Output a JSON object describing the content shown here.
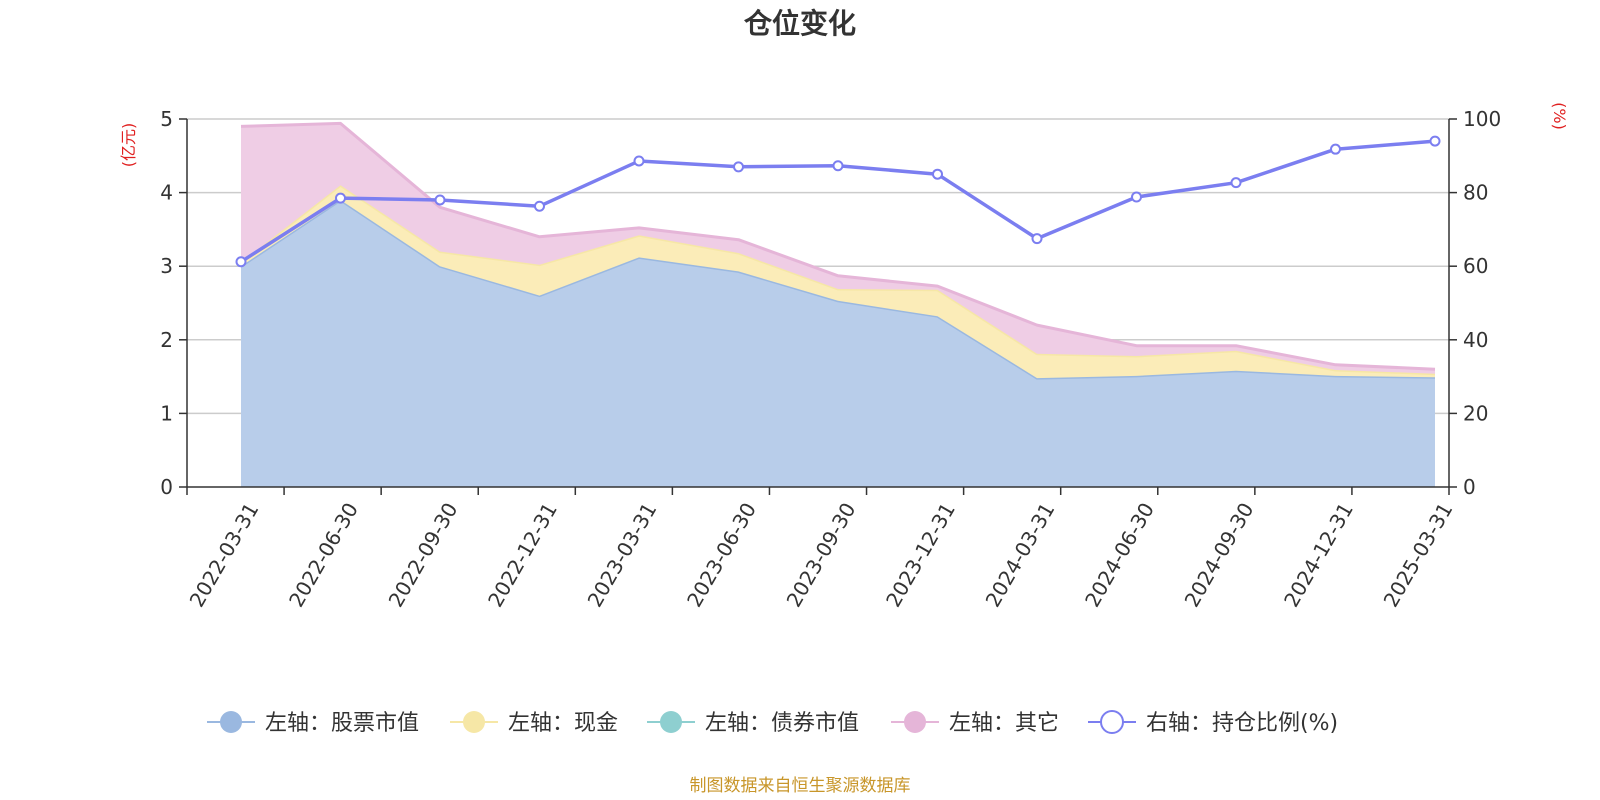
{
  "chart_data": {
    "type": "area",
    "title": "仓位变化",
    "left_unit": "(亿元)",
    "right_unit": "(%)",
    "categories": [
      "2022-03-31",
      "2022-06-30",
      "2022-09-30",
      "2022-12-31",
      "2023-03-31",
      "2023-06-30",
      "2023-09-30",
      "2023-12-31",
      "2024-03-31",
      "2024-06-30",
      "2024-09-30",
      "2024-12-31",
      "2025-03-31"
    ],
    "y_left": {
      "min": 0,
      "max": 5,
      "ticks": [
        "0",
        "1",
        "2",
        "3",
        "4",
        "5"
      ]
    },
    "y_right": {
      "min": 0,
      "max": 100,
      "ticks": [
        "0",
        "20",
        "40",
        "60",
        "80",
        "100"
      ]
    },
    "grid": true,
    "stacked": true,
    "series": [
      {
        "name": "左轴：股票市值",
        "axis": "left",
        "kind": "area",
        "color": "#9ab8e0",
        "fill": "#b8cdea",
        "values": [
          3.0,
          3.9,
          3.0,
          2.6,
          3.12,
          2.93,
          2.53,
          2.32,
          1.48,
          1.51,
          1.58,
          1.51,
          1.49
        ]
      },
      {
        "name": "左轴：现金",
        "axis": "left",
        "kind": "area",
        "color": "#f6e7a6",
        "fill": "#fbecb8",
        "values": [
          0.05,
          0.2,
          0.2,
          0.42,
          0.3,
          0.25,
          0.16,
          0.36,
          0.33,
          0.27,
          0.27,
          0.08,
          0.05
        ]
      },
      {
        "name": "左轴：债券市值",
        "axis": "left",
        "kind": "area",
        "color": "#8ecfd0",
        "fill": "#a8dcdc",
        "values": [
          0,
          0,
          0,
          0,
          0,
          0,
          0,
          0,
          0,
          0,
          0,
          0,
          0
        ]
      },
      {
        "name": "左轴：其它",
        "axis": "left",
        "kind": "area",
        "color": "#e5b5d8",
        "fill": "#efcde5",
        "values": [
          1.85,
          0.84,
          0.6,
          0.38,
          0.1,
          0.18,
          0.18,
          0.05,
          0.39,
          0.14,
          0.07,
          0.07,
          0.06
        ]
      },
      {
        "name": "右轴：持仓比例(%)",
        "axis": "right",
        "kind": "line",
        "color": "#7b7ef0",
        "values": [
          61.2,
          78.5,
          78.0,
          76.3,
          88.6,
          87.0,
          87.3,
          85.0,
          67.5,
          78.8,
          82.7,
          91.8,
          94.0
        ]
      }
    ],
    "legend_position": "bottom",
    "source_note": "制图数据来自恒生聚源数据库"
  }
}
